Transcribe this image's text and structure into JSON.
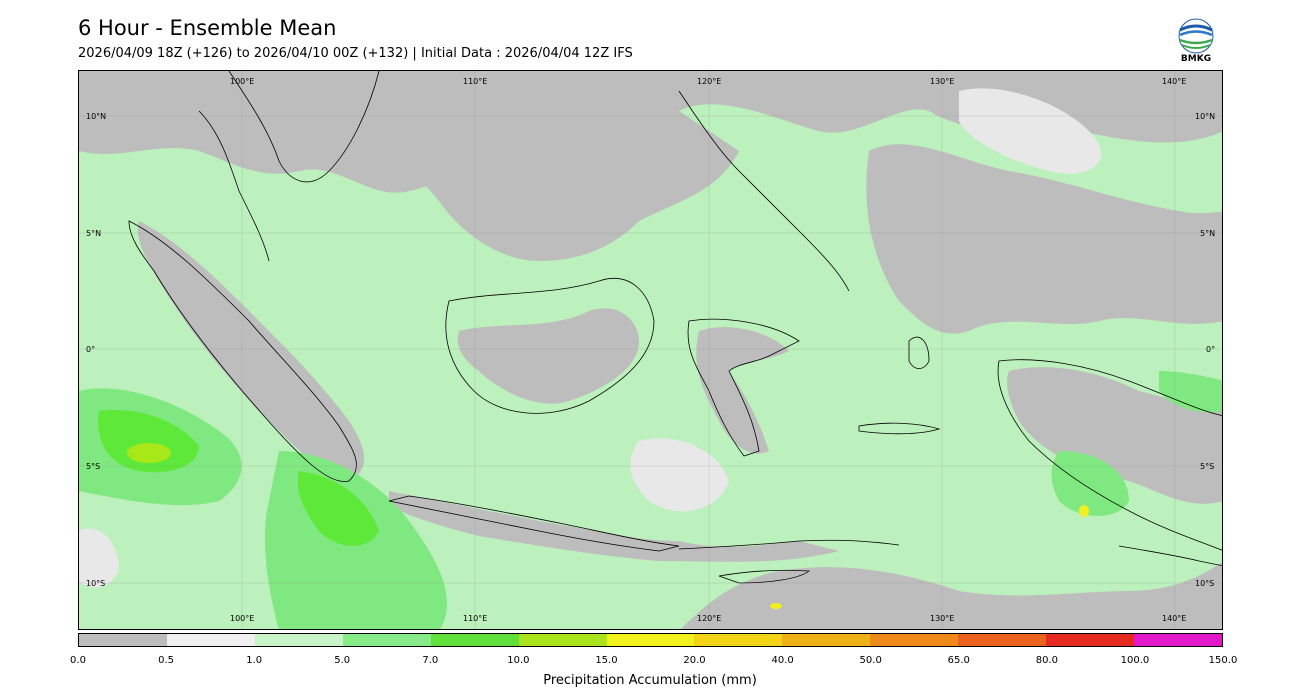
{
  "header": {
    "title": "6 Hour - Ensemble Mean",
    "subtitle": "2026/04/09 18Z (+126) to 2026/04/10 00Z (+132) | Initial Data : 2026/04/04 12Z IFS"
  },
  "logo": {
    "text": "BMKG",
    "icon": "bmkg-logo-icon"
  },
  "map": {
    "lat_labels": [
      "10°N",
      "5°N",
      "0°",
      "5°S",
      "10°S"
    ],
    "lon_labels": [
      "100°E",
      "110°E",
      "120°E",
      "130°E",
      "140°E"
    ],
    "colors": {
      "c0": "#bdbdbd",
      "c05": "#e8e8e8",
      "c1": "#bcf0bc",
      "c5": "#80e880",
      "c7": "#5ee83a",
      "c10": "#a8e818",
      "c15": "#f0f020"
    }
  },
  "colorbar": {
    "label": "Precipitation Accumulation (mm)",
    "ticks": [
      "0.0",
      "0.5",
      "1.0",
      "5.0",
      "7.0",
      "10.0",
      "15.0",
      "20.0",
      "40.0",
      "50.0",
      "65.0",
      "80.0",
      "100.0",
      "150.0"
    ],
    "colors": [
      "#bdbdbd",
      "#f0f0f0",
      "#c8f3c8",
      "#88ea88",
      "#5fe03a",
      "#a9e41c",
      "#f2f21f",
      "#f1d415",
      "#eeb118",
      "#ee8a1c",
      "#e9621e",
      "#e52a20",
      "#e01ac8"
    ]
  }
}
